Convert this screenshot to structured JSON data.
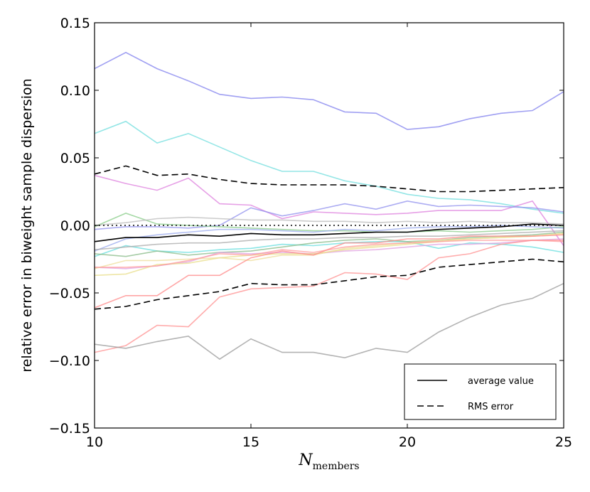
{
  "chart_data": {
    "type": "line",
    "ylabel": "relative error in biweight sample dispersion",
    "xlabel_main": "N",
    "xlabel_sub": "members",
    "xlim": [
      10,
      25
    ],
    "ylim": [
      -0.15,
      0.15
    ],
    "xticks": [
      10,
      15,
      20,
      25
    ],
    "yticks": [
      -0.15,
      -0.1,
      -0.05,
      0.0,
      0.05,
      0.1,
      0.15
    ],
    "ytick_labels": [
      "−0.15",
      "−0.10",
      "−0.05",
      "0.00",
      "0.05",
      "0.10",
      "0.15"
    ],
    "xtick_labels": [
      "10",
      "15",
      "20",
      "25"
    ],
    "x": [
      10,
      11,
      12,
      13,
      14,
      15,
      16,
      17,
      18,
      19,
      20,
      21,
      22,
      23,
      24,
      25
    ],
    "legend": {
      "position": "lower-right",
      "entries": [
        {
          "label": "average value",
          "style": "solid"
        },
        {
          "label": "RMS error",
          "style": "dashed"
        }
      ]
    },
    "series": [
      {
        "color": "#8080ee",
        "values": [
          0.116,
          0.128,
          0.116,
          0.107,
          0.097,
          0.094,
          0.095,
          0.093,
          0.084,
          0.083,
          0.071,
          0.073,
          0.079,
          0.083,
          0.085,
          0.099
        ]
      },
      {
        "color": "#70dede",
        "values": [
          0.068,
          0.077,
          0.061,
          0.068,
          0.058,
          0.048,
          0.04,
          0.04,
          0.033,
          0.029,
          0.023,
          0.02,
          0.019,
          0.016,
          0.012,
          0.009
        ]
      },
      {
        "color": "#dd80dd",
        "values": [
          0.037,
          0.031,
          0.026,
          0.035,
          0.016,
          0.015,
          0.005,
          0.01,
          0.009,
          0.008,
          0.009,
          0.011,
          0.011,
          0.011,
          0.018,
          -0.015
        ]
      },
      {
        "color": "#9090ee",
        "values": [
          -0.003,
          -0.001,
          -0.001,
          -0.002,
          0.0,
          0.013,
          0.007,
          0.011,
          0.016,
          0.012,
          0.018,
          0.014,
          0.015,
          0.014,
          0.013,
          0.01
        ]
      },
      {
        "color": "#88cc88",
        "values": [
          -0.001,
          0.009,
          0.001,
          0.0,
          -0.001,
          -0.002,
          -0.003,
          -0.004,
          -0.004,
          -0.005,
          -0.005,
          -0.004,
          -0.005,
          -0.004,
          -0.003,
          -0.001
        ]
      },
      {
        "color": "#bbbbbb",
        "values": [
          0.0,
          0.002,
          0.005,
          0.006,
          0.005,
          0.004,
          0.004,
          0.003,
          0.003,
          0.002,
          0.003,
          0.002,
          0.003,
          0.002,
          0.002,
          0.001
        ]
      },
      {
        "color": "#99aaee",
        "values": [
          -0.019,
          -0.01,
          -0.007,
          -0.005,
          -0.003,
          -0.003,
          -0.004,
          -0.005,
          -0.003,
          -0.004,
          -0.002,
          -0.001,
          -0.001,
          0.0,
          -0.001,
          -0.002
        ]
      },
      {
        "color": "#66dddd",
        "values": [
          -0.023,
          -0.015,
          -0.019,
          -0.02,
          -0.018,
          -0.017,
          -0.014,
          -0.015,
          -0.013,
          -0.012,
          -0.012,
          -0.017,
          -0.013,
          -0.014,
          -0.016,
          -0.02
        ]
      },
      {
        "color": "#88bb88",
        "values": [
          -0.021,
          -0.023,
          -0.019,
          -0.022,
          -0.02,
          -0.019,
          -0.016,
          -0.013,
          -0.011,
          -0.01,
          -0.012,
          -0.011,
          -0.009,
          -0.008,
          -0.007,
          -0.005
        ]
      },
      {
        "color": "#aaaaaa",
        "values": [
          -0.018,
          -0.016,
          -0.014,
          -0.013,
          -0.013,
          -0.011,
          -0.01,
          -0.01,
          -0.009,
          -0.009,
          -0.008,
          -0.008,
          -0.007,
          -0.006,
          -0.005,
          -0.004
        ]
      },
      {
        "color": "#e0a0e0",
        "values": [
          -0.031,
          -0.032,
          -0.03,
          -0.027,
          -0.02,
          -0.021,
          -0.02,
          -0.021,
          -0.019,
          -0.018,
          -0.016,
          -0.014,
          -0.014,
          -0.013,
          -0.011,
          -0.01
        ]
      },
      {
        "color": "#e8dd88",
        "values": [
          -0.037,
          -0.036,
          -0.029,
          -0.028,
          -0.024,
          -0.022,
          -0.021,
          -0.021,
          -0.018,
          -0.016,
          -0.014,
          -0.012,
          -0.01,
          -0.009,
          -0.008,
          -0.006
        ]
      },
      {
        "color": "#eedd99",
        "values": [
          -0.032,
          -0.026,
          -0.026,
          -0.025,
          -0.024,
          -0.026,
          -0.022,
          -0.022,
          -0.017,
          -0.015,
          -0.013,
          -0.011,
          -0.01,
          -0.009,
          -0.008,
          -0.006
        ]
      },
      {
        "color": "#ff9999",
        "values": [
          -0.031,
          -0.031,
          -0.03,
          -0.026,
          -0.021,
          -0.022,
          -0.018,
          -0.02,
          -0.016,
          -0.014,
          -0.013,
          -0.012,
          -0.011,
          -0.011,
          -0.011,
          -0.012
        ]
      },
      {
        "color": "#ff8888",
        "values": [
          -0.061,
          -0.052,
          -0.052,
          -0.037,
          -0.037,
          -0.024,
          -0.019,
          -0.022,
          -0.013,
          -0.013,
          -0.01,
          -0.01,
          -0.008,
          -0.008,
          -0.008,
          -0.007
        ]
      },
      {
        "color": "#ff9090",
        "values": [
          -0.094,
          -0.089,
          -0.074,
          -0.075,
          -0.053,
          -0.047,
          -0.046,
          -0.045,
          -0.035,
          -0.036,
          -0.04,
          -0.024,
          -0.021,
          -0.014,
          -0.011,
          -0.011
        ]
      },
      {
        "color": "#999999",
        "values": [
          -0.088,
          -0.091,
          -0.086,
          -0.082,
          -0.099,
          -0.084,
          -0.094,
          -0.094,
          -0.098,
          -0.091,
          -0.094,
          -0.079,
          -0.068,
          -0.059,
          -0.054,
          -0.043
        ]
      }
    ],
    "average_line": {
      "color": "#000000",
      "style": "solid",
      "values": [
        -0.012,
        -0.009,
        -0.009,
        -0.007,
        -0.008,
        -0.006,
        -0.007,
        -0.007,
        -0.006,
        -0.005,
        -0.005,
        -0.003,
        -0.002,
        -0.001,
        0.001,
        0.0
      ]
    },
    "rms_upper": {
      "color": "#000000",
      "style": "dashed",
      "values": [
        0.038,
        0.044,
        0.037,
        0.038,
        0.034,
        0.031,
        0.03,
        0.03,
        0.03,
        0.029,
        0.027,
        0.025,
        0.025,
        0.026,
        0.027,
        0.028
      ]
    },
    "rms_lower": {
      "color": "#000000",
      "style": "dashed",
      "values": [
        -0.062,
        -0.06,
        -0.055,
        -0.052,
        -0.049,
        -0.043,
        -0.044,
        -0.044,
        -0.041,
        -0.038,
        -0.037,
        -0.031,
        -0.029,
        -0.027,
        -0.025,
        -0.027
      ]
    },
    "zero_line": {
      "color": "#000000",
      "style": "dotted",
      "value": 0.0
    }
  }
}
